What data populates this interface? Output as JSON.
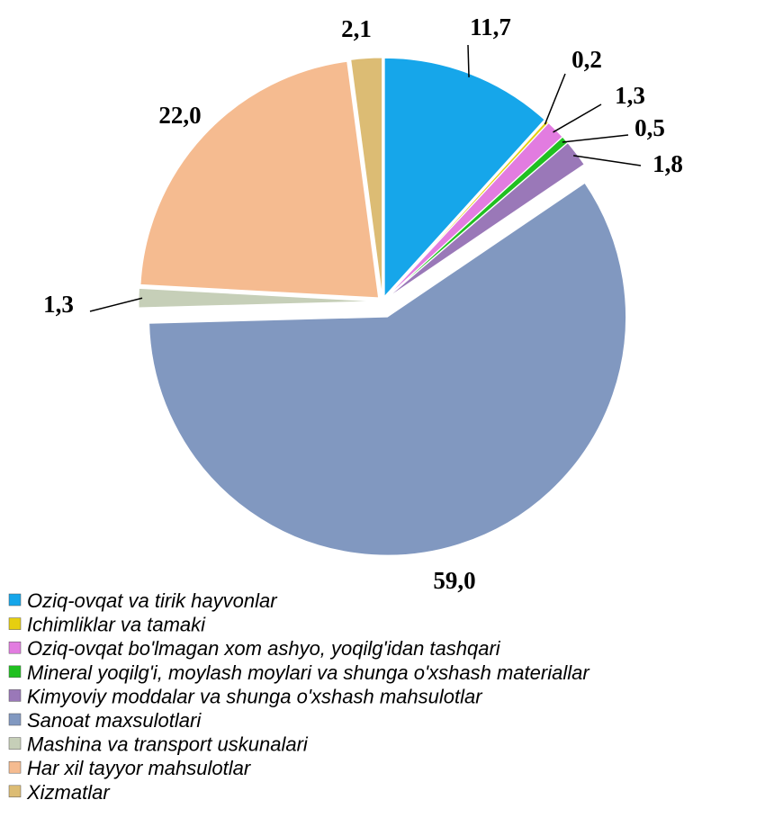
{
  "chart_data": {
    "type": "pie",
    "categories": [
      "Oziq-ovqat va tirik hayvonlar",
      "Ichimliklar va tamaki",
      "Oziq-ovqat bo'lmagan xom ashyo, yoqilg'idan tashqari",
      "Mineral yoqilg'i, moylash moylari va shunga o'xshash materiallar",
      "Kimyoviy moddalar va shunga o'xshash mahsulotlar",
      "Sanoat maxsulotlari",
      "Mashina va transport uskunalari",
      "Har xil tayyor mahsulotlar",
      "Xizmatlar"
    ],
    "values": [
      11.7,
      0.2,
      1.3,
      0.5,
      1.8,
      59.0,
      1.3,
      22.0,
      2.1
    ],
    "value_labels": [
      "11,7",
      "0,2",
      "1,3",
      "0,5",
      "1,8",
      "59,0",
      "1,3",
      "22,0",
      "2,1"
    ],
    "colors": [
      "#16a6ea",
      "#e6cf10",
      "#e27ce0",
      "#20c020",
      "#9a78b8",
      "#8198c0",
      "#c6cfb8",
      "#f5bb90",
      "#dcbc74"
    ],
    "legend": "bottom"
  }
}
